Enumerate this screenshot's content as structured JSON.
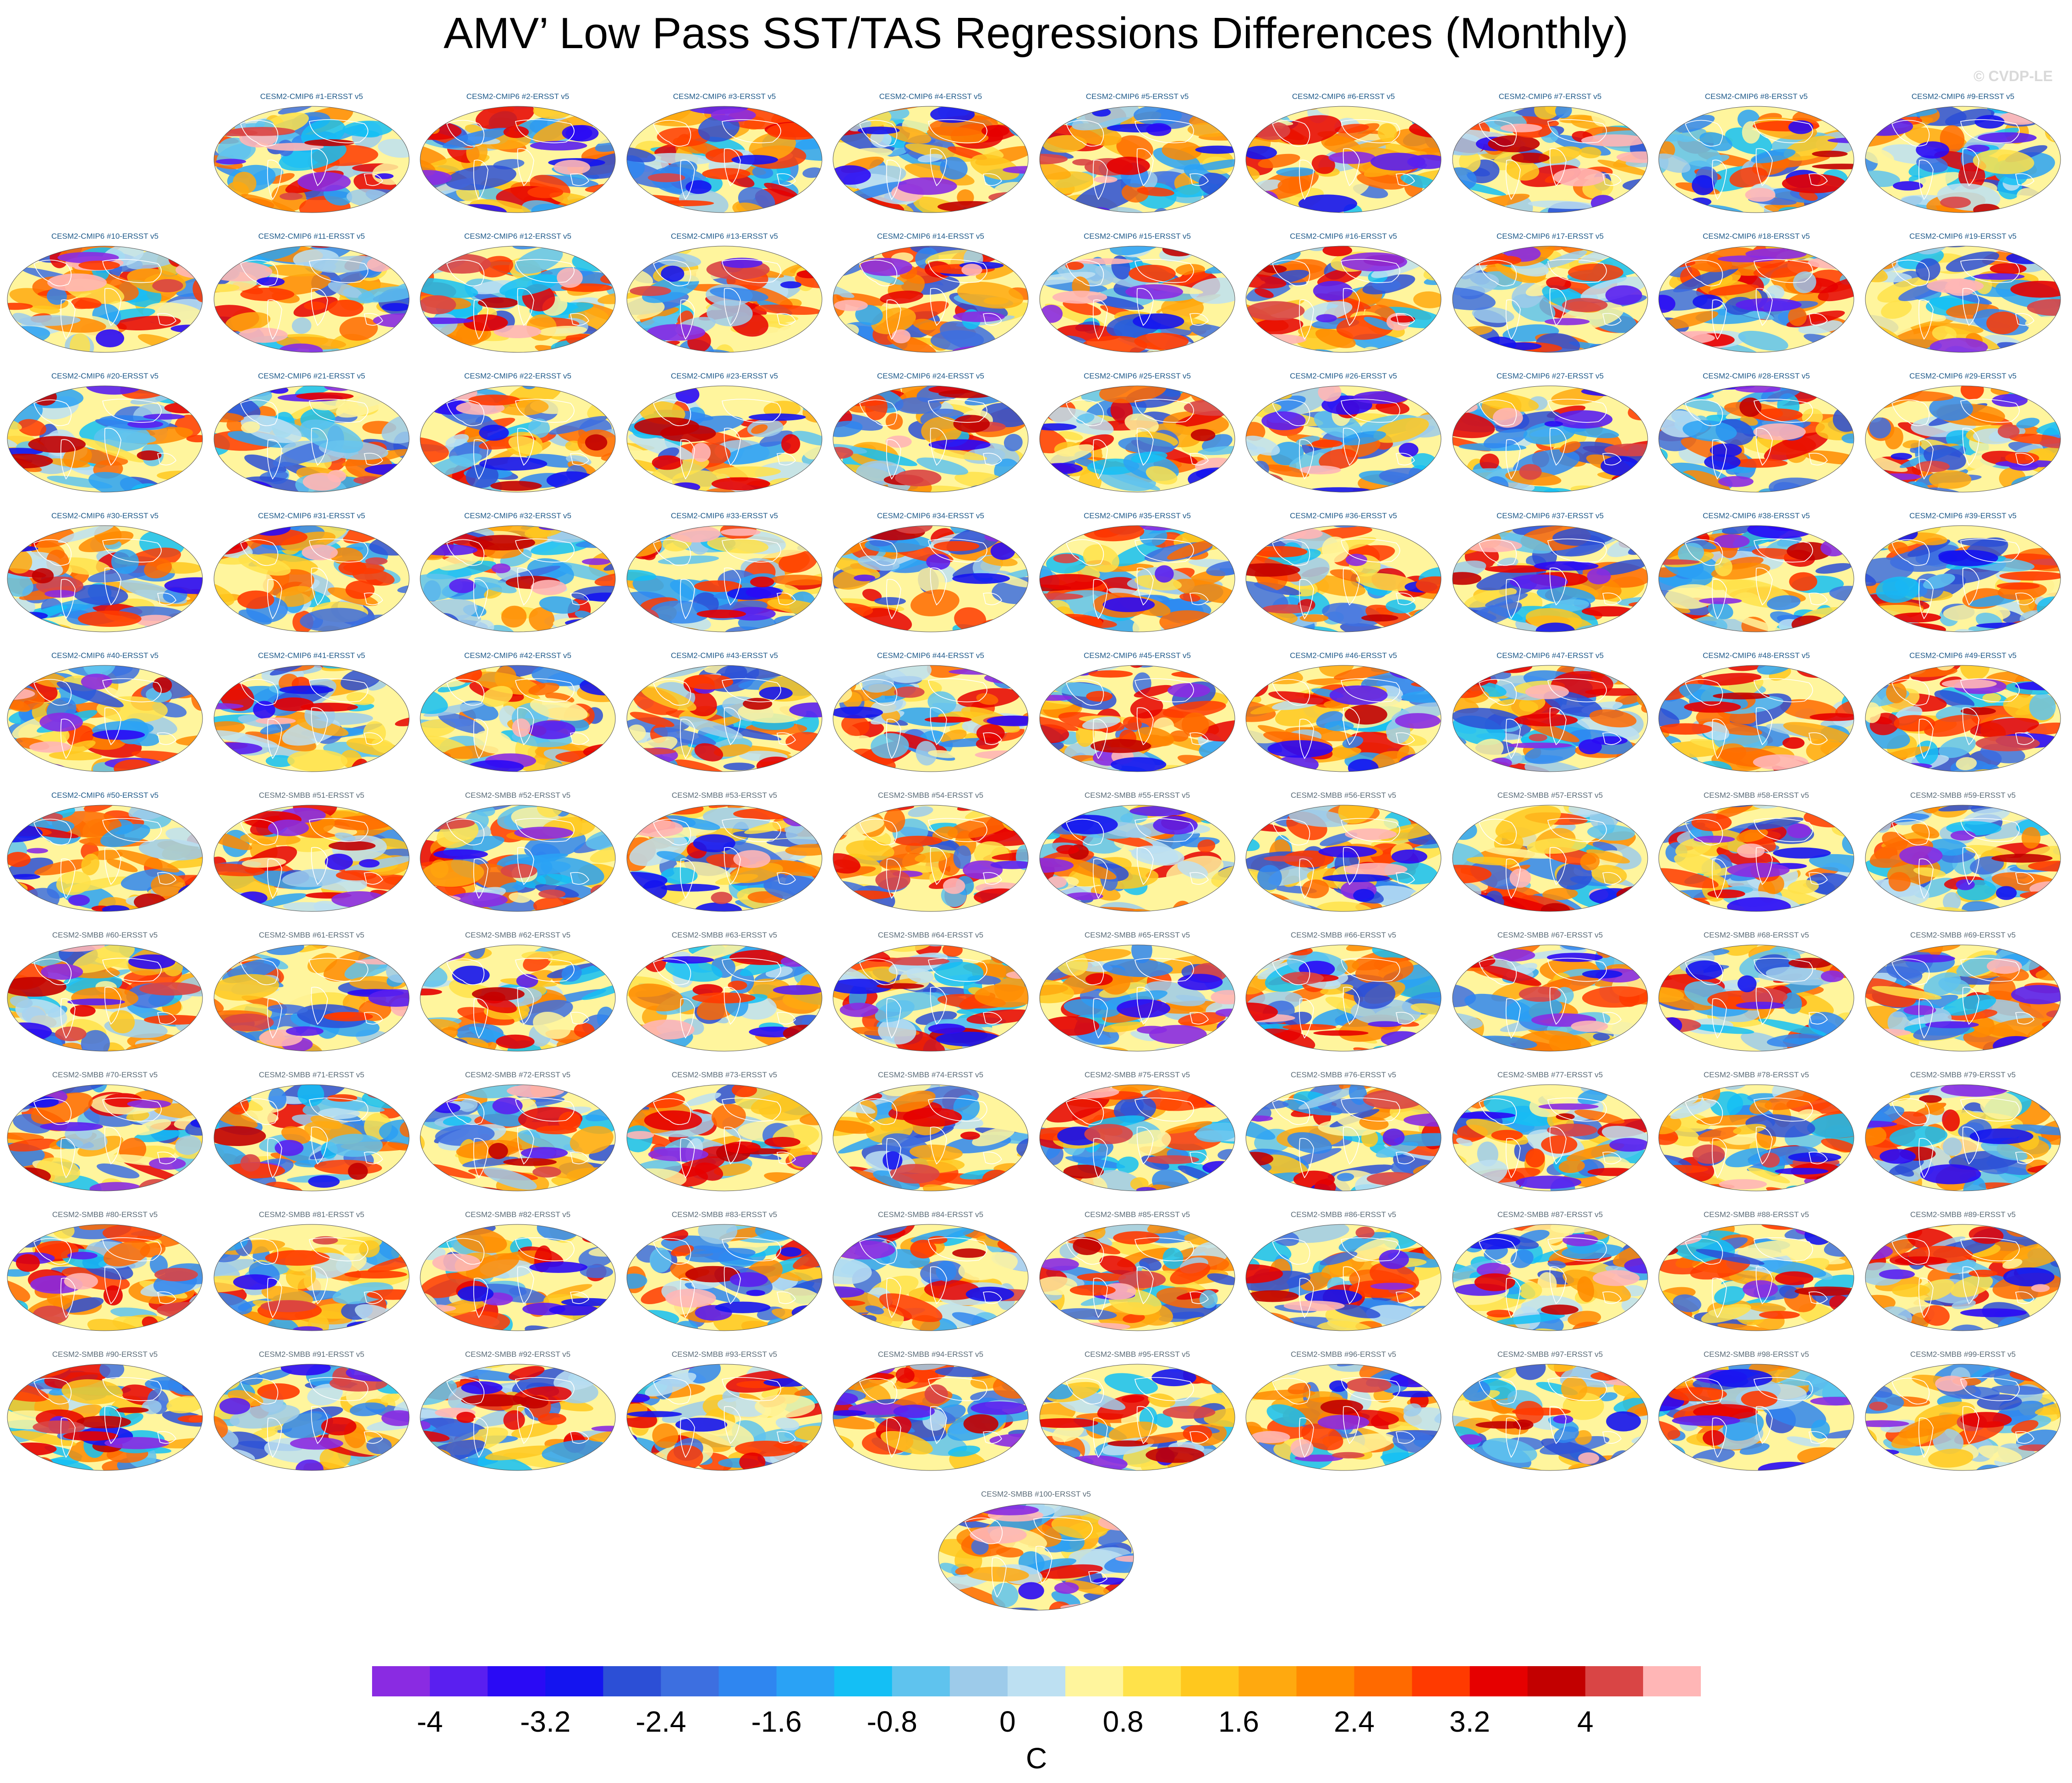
{
  "title": "AMV’ Low Pass SST/TAS Regressions Differences (Monthly)",
  "watermark": "© CVDP-LE",
  "panels": [
    "CESM2-CMIP6 #1-ERSST v5",
    "CESM2-CMIP6 #2-ERSST v5",
    "CESM2-CMIP6 #3-ERSST v5",
    "CESM2-CMIP6 #4-ERSST v5",
    "CESM2-CMIP6 #5-ERSST v5",
    "CESM2-CMIP6 #6-ERSST v5",
    "CESM2-CMIP6 #7-ERSST v5",
    "CESM2-CMIP6 #8-ERSST v5",
    "CESM2-CMIP6 #9-ERSST v5",
    "CESM2-CMIP6 #10-ERSST v5",
    "CESM2-CMIP6 #11-ERSST v5",
    "CESM2-CMIP6 #12-ERSST v5",
    "CESM2-CMIP6 #13-ERSST v5",
    "CESM2-CMIP6 #14-ERSST v5",
    "CESM2-CMIP6 #15-ERSST v5",
    "CESM2-CMIP6 #16-ERSST v5",
    "CESM2-CMIP6 #17-ERSST v5",
    "CESM2-CMIP6 #18-ERSST v5",
    "CESM2-CMIP6 #19-ERSST v5",
    "CESM2-CMIP6 #20-ERSST v5",
    "CESM2-CMIP6 #21-ERSST v5",
    "CESM2-CMIP6 #22-ERSST v5",
    "CESM2-CMIP6 #23-ERSST v5",
    "CESM2-CMIP6 #24-ERSST v5",
    "CESM2-CMIP6 #25-ERSST v5",
    "CESM2-CMIP6 #26-ERSST v5",
    "CESM2-CMIP6 #27-ERSST v5",
    "CESM2-CMIP6 #28-ERSST v5",
    "CESM2-CMIP6 #29-ERSST v5",
    "CESM2-CMIP6 #30-ERSST v5",
    "CESM2-CMIP6 #31-ERSST v5",
    "CESM2-CMIP6 #32-ERSST v5",
    "CESM2-CMIP6 #33-ERSST v5",
    "CESM2-CMIP6 #34-ERSST v5",
    "CESM2-CMIP6 #35-ERSST v5",
    "CESM2-CMIP6 #36-ERSST v5",
    "CESM2-CMIP6 #37-ERSST v5",
    "CESM2-CMIP6 #38-ERSST v5",
    "CESM2-CMIP6 #39-ERSST v5",
    "CESM2-CMIP6 #40-ERSST v5",
    "CESM2-CMIP6 #41-ERSST v5",
    "CESM2-CMIP6 #42-ERSST v5",
    "CESM2-CMIP6 #43-ERSST v5",
    "CESM2-CMIP6 #44-ERSST v5",
    "CESM2-CMIP6 #45-ERSST v5",
    "CESM2-CMIP6 #46-ERSST v5",
    "CESM2-CMIP6 #47-ERSST v5",
    "CESM2-CMIP6 #48-ERSST v5",
    "CESM2-CMIP6 #49-ERSST v5",
    "CESM2-CMIP6 #50-ERSST v5",
    "CESM2-SMBB #51-ERSST v5",
    "CESM2-SMBB #52-ERSST v5",
    "CESM2-SMBB #53-ERSST v5",
    "CESM2-SMBB #54-ERSST v5",
    "CESM2-SMBB #55-ERSST v5",
    "CESM2-SMBB #56-ERSST v5",
    "CESM2-SMBB #57-ERSST v5",
    "CESM2-SMBB #58-ERSST v5",
    "CESM2-SMBB #59-ERSST v5",
    "CESM2-SMBB #60-ERSST v5",
    "CESM2-SMBB #61-ERSST v5",
    "CESM2-SMBB #62-ERSST v5",
    "CESM2-SMBB #63-ERSST v5",
    "CESM2-SMBB #64-ERSST v5",
    "CESM2-SMBB #65-ERSST v5",
    "CESM2-SMBB #66-ERSST v5",
    "CESM2-SMBB #67-ERSST v5",
    "CESM2-SMBB #68-ERSST v5",
    "CESM2-SMBB #69-ERSST v5",
    "CESM2-SMBB #70-ERSST v5",
    "CESM2-SMBB #71-ERSST v5",
    "CESM2-SMBB #72-ERSST v5",
    "CESM2-SMBB #73-ERSST v5",
    "CESM2-SMBB #74-ERSST v5",
    "CESM2-SMBB #75-ERSST v5",
    "CESM2-SMBB #76-ERSST v5",
    "CESM2-SMBB #77-ERSST v5",
    "CESM2-SMBB #78-ERSST v5",
    "CESM2-SMBB #79-ERSST v5",
    "CESM2-SMBB #80-ERSST v5",
    "CESM2-SMBB #81-ERSST v5",
    "CESM2-SMBB #82-ERSST v5",
    "CESM2-SMBB #83-ERSST v5",
    "CESM2-SMBB #84-ERSST v5",
    "CESM2-SMBB #85-ERSST v5",
    "CESM2-SMBB #86-ERSST v5",
    "CESM2-SMBB #87-ERSST v5",
    "CESM2-SMBB #88-ERSST v5",
    "CESM2-SMBB #89-ERSST v5",
    "CESM2-SMBB #90-ERSST v5",
    "CESM2-SMBB #91-ERSST v5",
    "CESM2-SMBB #92-ERSST v5",
    "CESM2-SMBB #93-ERSST v5",
    "CESM2-SMBB #94-ERSST v5",
    "CESM2-SMBB #95-ERSST v5",
    "CESM2-SMBB #96-ERSST v5",
    "CESM2-SMBB #97-ERSST v5",
    "CESM2-SMBB #98-ERSST v5",
    "CESM2-SMBB #99-ERSST v5",
    "CESM2-SMBB #100-ERSST v5"
  ],
  "colorbar": {
    "units": "C",
    "min": -4.4,
    "max": 4.4,
    "ticks": [
      "-4",
      "-3.2",
      "-2.4",
      "-1.6",
      "-0.8",
      "0",
      "0.8",
      "1.6",
      "2.4",
      "3.2",
      "4"
    ],
    "colors": [
      "#8a2be2",
      "#5a1ff0",
      "#2a0af5",
      "#1414f0",
      "#2c4fd6",
      "#3d6fe0",
      "#2f86f0",
      "#2aa2f5",
      "#14bff5",
      "#5fc3ee",
      "#9dcbea",
      "#bde0f2",
      "#fff59d",
      "#ffe24a",
      "#ffc81e",
      "#ffa90f",
      "#ff8a00",
      "#ff6a00",
      "#ff3a00",
      "#e60000",
      "#c20000",
      "#d94545",
      "#ffb6b6"
    ]
  }
}
